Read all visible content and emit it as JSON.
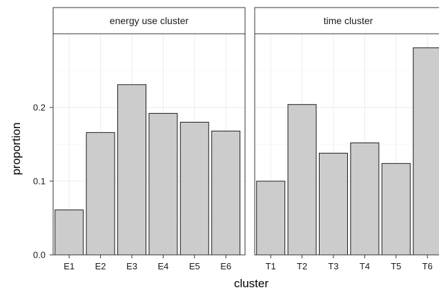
{
  "chart_data": {
    "type": "bar",
    "ylabel": "proportion",
    "xlabel": "cluster",
    "ylim": [
      0,
      0.3
    ],
    "yticks": [
      0.0,
      0.1,
      0.2
    ],
    "ytick_labels": [
      "0.0",
      "0.1",
      "0.2"
    ],
    "grid": true,
    "bar_fill": "#cccccc",
    "bar_stroke": "#1a1a1a",
    "panels": [
      {
        "title": "energy use cluster",
        "categories": [
          "E1",
          "E2",
          "E3",
          "E4",
          "E5",
          "E6"
        ],
        "values": [
          0.061,
          0.166,
          0.231,
          0.192,
          0.18,
          0.168
        ]
      },
      {
        "title": "time cluster",
        "categories": [
          "T1",
          "T2",
          "T3",
          "T4",
          "T5",
          "T6"
        ],
        "values": [
          0.1,
          0.204,
          0.138,
          0.152,
          0.124,
          0.281
        ]
      }
    ]
  }
}
